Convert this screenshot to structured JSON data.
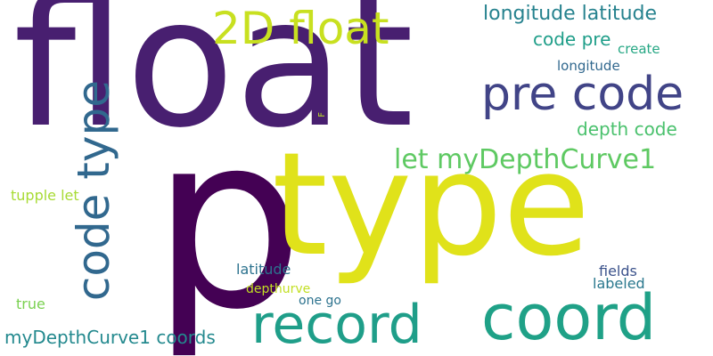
{
  "words": {
    "float": "float",
    "p": "p",
    "type": "type",
    "coord": "coord",
    "record": "record",
    "pre_code": "pre code",
    "code_type": "code type",
    "twod_float": "2D float",
    "let_mydepthcurve1": "let myDepthCurve1",
    "longitude_latitude": "longitude latitude",
    "code_pre": "code pre",
    "create": "create",
    "longitude": "longitude",
    "f": "F",
    "depth_code": "depth code",
    "tupple_let": "tupple let",
    "latitude": "latitude",
    "fields": "fields",
    "labeled": "labeled",
    "depthurve": "depthurve",
    "one_go": "one go",
    "true": "true",
    "mydepthcurve1_coords": "myDepthCurve1 coords"
  },
  "colors": {
    "dark_purple": "#440154",
    "purple": "#482878",
    "indigo": "#3e4989",
    "blue": "#31688e",
    "teal": "#26828e",
    "green_teal": "#1f9e89",
    "green": "#35b779",
    "light_green": "#6ece58",
    "yellow_green": "#b5de2b",
    "yellow": "#e0e21a"
  }
}
